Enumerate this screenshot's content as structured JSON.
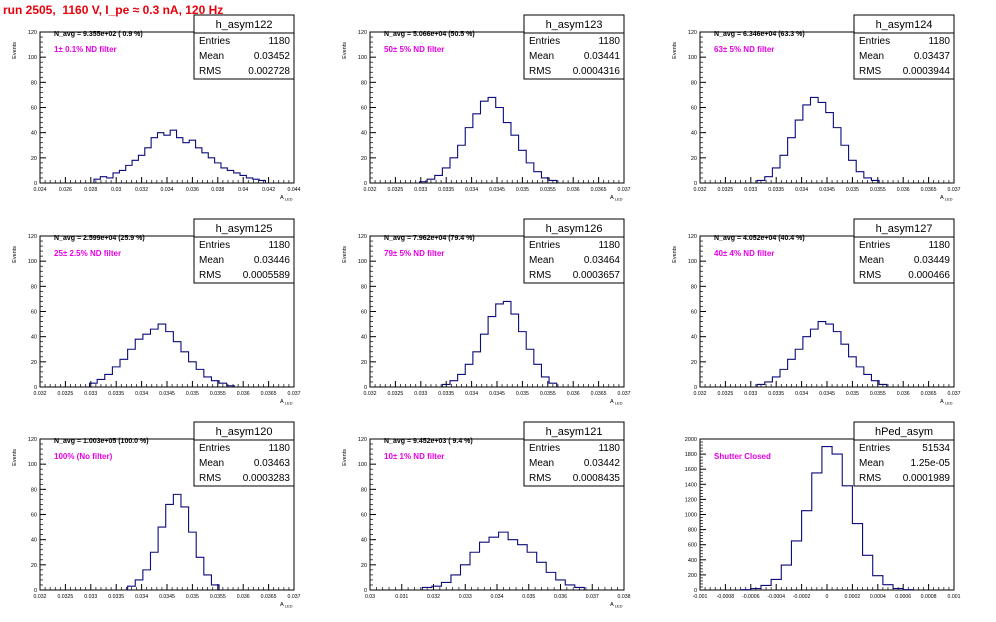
{
  "run_title": "run 2505,  1160 V, I_pe ≈ 0.3 nA, 120 Hz",
  "colors": {
    "histogram": "#0b0b7a",
    "title": "#e8000b",
    "filter_label": "#e600e6",
    "axis": "#000000"
  },
  "stats_labels": [
    "Entries",
    "Mean",
    "RMS"
  ],
  "chart_data": [
    {
      "type": "bar",
      "name": "h_asym122",
      "navg_label": "N_avg = 9.355e+02 ( 0.9 %)",
      "filter_label": "1± 0.1% ND filter",
      "ylabel": "Events",
      "xlabel": "A",
      "xlabel_sub": "LED",
      "ylim": [
        0,
        120
      ],
      "yticks": [
        0,
        20,
        40,
        60,
        80,
        100,
        120
      ],
      "xlim": [
        0.024,
        0.044
      ],
      "xticks": [
        "0.024",
        "0.026",
        "0.028",
        "0.03",
        "0.032",
        "0.034",
        "0.036",
        "0.038",
        "0.04",
        "0.042",
        "0.044"
      ],
      "stats": {
        "Entries": "1180",
        "Mean": "0.03452",
        "RMS": "0.002728"
      },
      "bin_centers": [
        0.0285,
        0.029,
        0.0295,
        0.03,
        0.0305,
        0.031,
        0.0315,
        0.032,
        0.0325,
        0.033,
        0.0335,
        0.034,
        0.0345,
        0.035,
        0.0355,
        0.036,
        0.0365,
        0.037,
        0.0375,
        0.038,
        0.0385,
        0.039,
        0.0395,
        0.04,
        0.0405,
        0.041,
        0.0415
      ],
      "bin_values": [
        3,
        5,
        4,
        8,
        10,
        14,
        18,
        22,
        28,
        36,
        40,
        38,
        42,
        36,
        32,
        34,
        28,
        24,
        20,
        16,
        12,
        10,
        8,
        6,
        4,
        3,
        2
      ]
    },
    {
      "type": "bar",
      "name": "h_asym123",
      "navg_label": "N_avg = 5.066e+04 (50.5 %)",
      "filter_label": "50± 5% ND filter",
      "ylabel": "Events",
      "xlabel": "A",
      "xlabel_sub": "LED",
      "ylim": [
        0,
        120
      ],
      "yticks": [
        0,
        20,
        40,
        60,
        80,
        100,
        120
      ],
      "xlim": [
        0.032,
        0.037
      ],
      "xticks": [
        "0.032",
        "0.0325",
        "0.033",
        "0.0335",
        "0.034",
        "0.0345",
        "0.035",
        "0.0355",
        "0.036",
        "0.0365",
        "0.037"
      ],
      "stats": {
        "Entries": "1180",
        "Mean": "0.03441",
        "RMS": "0.0004316"
      },
      "bin_centers": [
        0.03305,
        0.0332,
        0.03335,
        0.0335,
        0.03365,
        0.0338,
        0.03395,
        0.0341,
        0.03425,
        0.0344,
        0.03455,
        0.0347,
        0.03485,
        0.035,
        0.03515,
        0.0353,
        0.03545,
        0.0356
      ],
      "bin_values": [
        1,
        3,
        6,
        12,
        20,
        30,
        44,
        55,
        65,
        68,
        60,
        48,
        38,
        26,
        16,
        9,
        4,
        2
      ]
    },
    {
      "type": "bar",
      "name": "h_asym124",
      "navg_label": "N_avg = 6.346e+04 (63.3 %)",
      "filter_label": "63± 5% ND filter",
      "ylabel": "Events",
      "xlabel": "A",
      "xlabel_sub": "LED",
      "ylim": [
        0,
        120
      ],
      "yticks": [
        0,
        20,
        40,
        60,
        80,
        100,
        120
      ],
      "xlim": [
        0.032,
        0.037
      ],
      "xticks": [
        "0.032",
        "0.0325",
        "0.033",
        "0.0335",
        "0.034",
        "0.0345",
        "0.035",
        "0.0355",
        "0.036",
        "0.0365",
        "0.037"
      ],
      "stats": {
        "Entries": "1180",
        "Mean": "0.03437",
        "RMS": "0.0003944"
      },
      "bin_centers": [
        0.0332,
        0.03335,
        0.0335,
        0.03365,
        0.0338,
        0.03395,
        0.0341,
        0.03425,
        0.0344,
        0.03455,
        0.0347,
        0.03485,
        0.035,
        0.03515,
        0.0353,
        0.03545
      ],
      "bin_values": [
        2,
        5,
        12,
        22,
        36,
        50,
        62,
        68,
        64,
        56,
        44,
        30,
        18,
        9,
        4,
        2
      ]
    },
    {
      "type": "bar",
      "name": "h_asym125",
      "navg_label": "N_avg = 2.599e+04 (25.9 %)",
      "filter_label": "25± 2.5% ND filter",
      "ylabel": "Events",
      "xlabel": "A",
      "xlabel_sub": "LED",
      "ylim": [
        0,
        120
      ],
      "yticks": [
        0,
        20,
        40,
        60,
        80,
        100,
        120
      ],
      "xlim": [
        0.032,
        0.037
      ],
      "xticks": [
        "0.032",
        "0.0325",
        "0.033",
        "0.0335",
        "0.034",
        "0.0345",
        "0.035",
        "0.0355",
        "0.036",
        "0.0365",
        "0.037"
      ],
      "stats": {
        "Entries": "1180",
        "Mean": "0.03446",
        "RMS": "0.0005589"
      },
      "bin_centers": [
        0.03305,
        0.0332,
        0.03335,
        0.0335,
        0.03365,
        0.0338,
        0.03395,
        0.0341,
        0.03425,
        0.0344,
        0.03455,
        0.0347,
        0.03485,
        0.035,
        0.03515,
        0.0353,
        0.03545,
        0.0356,
        0.03575
      ],
      "bin_values": [
        3,
        6,
        10,
        16,
        22,
        30,
        38,
        42,
        46,
        50,
        44,
        36,
        28,
        20,
        14,
        8,
        5,
        3,
        1
      ]
    },
    {
      "type": "bar",
      "name": "h_asym126",
      "navg_label": "N_avg = 7.962e+04 (79.4 %)",
      "filter_label": "79± 5% ND filter",
      "ylabel": "Events",
      "xlabel": "A",
      "xlabel_sub": "LED",
      "ylim": [
        0,
        120
      ],
      "yticks": [
        0,
        20,
        40,
        60,
        80,
        100,
        120
      ],
      "xlim": [
        0.032,
        0.037
      ],
      "xticks": [
        "0.032",
        "0.0325",
        "0.033",
        "0.0335",
        "0.034",
        "0.0345",
        "0.035",
        "0.0355",
        "0.036",
        "0.0365",
        "0.037"
      ],
      "stats": {
        "Entries": "1180",
        "Mean": "0.03464",
        "RMS": "0.0003657"
      },
      "bin_centers": [
        0.0335,
        0.03365,
        0.0338,
        0.03395,
        0.0341,
        0.03425,
        0.0344,
        0.03455,
        0.0347,
        0.03485,
        0.035,
        0.03515,
        0.0353,
        0.03545,
        0.0356
      ],
      "bin_values": [
        2,
        5,
        10,
        18,
        28,
        42,
        56,
        66,
        68,
        58,
        44,
        30,
        18,
        8,
        3
      ]
    },
    {
      "type": "bar",
      "name": "h_asym127",
      "navg_label": "N_avg = 4.052e+04 (40.4 %)",
      "filter_label": "40± 4% ND filter",
      "ylabel": "Events",
      "xlabel": "A",
      "xlabel_sub": "LED",
      "ylim": [
        0,
        120
      ],
      "yticks": [
        0,
        20,
        40,
        60,
        80,
        100,
        120
      ],
      "xlim": [
        0.032,
        0.037
      ],
      "xticks": [
        "0.032",
        "0.0325",
        "0.033",
        "0.0335",
        "0.034",
        "0.0345",
        "0.035",
        "0.0355",
        "0.036",
        "0.0365",
        "0.037"
      ],
      "stats": {
        "Entries": "1180",
        "Mean": "0.03449",
        "RMS": "0.000466"
      },
      "bin_centers": [
        0.0332,
        0.03335,
        0.0335,
        0.03365,
        0.0338,
        0.03395,
        0.0341,
        0.03425,
        0.0344,
        0.03455,
        0.0347,
        0.03485,
        0.035,
        0.03515,
        0.0353,
        0.03545,
        0.0356
      ],
      "bin_values": [
        2,
        4,
        8,
        14,
        22,
        30,
        40,
        46,
        52,
        50,
        44,
        34,
        24,
        16,
        10,
        5,
        2
      ]
    },
    {
      "type": "bar",
      "name": "h_asym120",
      "navg_label": "N_avg = 1.003e+05 (100.0 %)",
      "filter_label": "100% (No filter)",
      "ylabel": "Events",
      "xlabel": "A",
      "xlabel_sub": "LED",
      "ylim": [
        0,
        120
      ],
      "yticks": [
        0,
        20,
        40,
        60,
        80,
        100,
        120
      ],
      "xlim": [
        0.032,
        0.037
      ],
      "xticks": [
        "0.032",
        "0.0325",
        "0.033",
        "0.0335",
        "0.034",
        "0.0345",
        "0.035",
        "0.0355",
        "0.036",
        "0.0365",
        "0.037"
      ],
      "stats": {
        "Entries": "1180",
        "Mean": "0.03463",
        "RMS": "0.0003283"
      },
      "bin_centers": [
        0.0338,
        0.03395,
        0.0341,
        0.03425,
        0.0344,
        0.03455,
        0.0347,
        0.03485,
        0.035,
        0.03515,
        0.0353,
        0.03545
      ],
      "bin_values": [
        3,
        8,
        16,
        30,
        50,
        68,
        76,
        66,
        46,
        26,
        12,
        4
      ]
    },
    {
      "type": "bar",
      "name": "h_asym121",
      "navg_label": "N_avg = 9.452e+03 ( 9.4 %)",
      "filter_label": "10± 1% ND filter",
      "ylabel": "Events",
      "xlabel": "A",
      "xlabel_sub": "LED",
      "ylim": [
        0,
        120
      ],
      "yticks": [
        0,
        20,
        40,
        60,
        80,
        100,
        120
      ],
      "xlim": [
        0.03,
        0.038
      ],
      "xticks": [
        "0.03",
        "0.031",
        "0.032",
        "0.033",
        "0.034",
        "0.035",
        "0.036",
        "0.037",
        "0.038"
      ],
      "stats": {
        "Entries": "1180",
        "Mean": "0.03442",
        "RMS": "0.0008435"
      },
      "bin_centers": [
        0.0318,
        0.0321,
        0.0324,
        0.0327,
        0.033,
        0.0333,
        0.0336,
        0.0339,
        0.0342,
        0.0345,
        0.0348,
        0.0351,
        0.0354,
        0.0357,
        0.036,
        0.0363,
        0.0366
      ],
      "bin_values": [
        2,
        3,
        6,
        12,
        20,
        30,
        38,
        42,
        46,
        40,
        36,
        30,
        22,
        14,
        8,
        4,
        2
      ]
    },
    {
      "type": "bar",
      "name": "hPed_asym",
      "navg_label": "",
      "filter_label": "Shutter Closed",
      "ylabel": "",
      "xlabel": "",
      "xlabel_sub": "",
      "ylim": [
        0,
        2000
      ],
      "yticks": [
        0,
        200,
        400,
        600,
        800,
        1000,
        1200,
        1400,
        1600,
        1800,
        2000
      ],
      "xlim": [
        -0.001,
        0.001
      ],
      "xticks": [
        "-0.001",
        "-0.0008",
        "-0.0006",
        "-0.0004",
        "-0.0002",
        "0",
        "0.0002",
        "0.0004",
        "0.0006",
        "0.0008",
        "0.001"
      ],
      "stats": {
        "Entries": "51534",
        "Mean": "1.25e-05",
        "RMS": "0.0001989"
      },
      "bin_centers": [
        -0.00064,
        -0.00056,
        -0.00048,
        -0.0004,
        -0.00032,
        -0.00024,
        -0.00016,
        -8e-05,
        0.0,
        8e-05,
        0.00016,
        0.00024,
        0.00032,
        0.0004,
        0.00048,
        0.00056,
        0.00064
      ],
      "bin_values": [
        5,
        20,
        60,
        140,
        330,
        650,
        1050,
        1550,
        1900,
        1800,
        1380,
        880,
        460,
        190,
        70,
        20,
        5
      ]
    }
  ]
}
